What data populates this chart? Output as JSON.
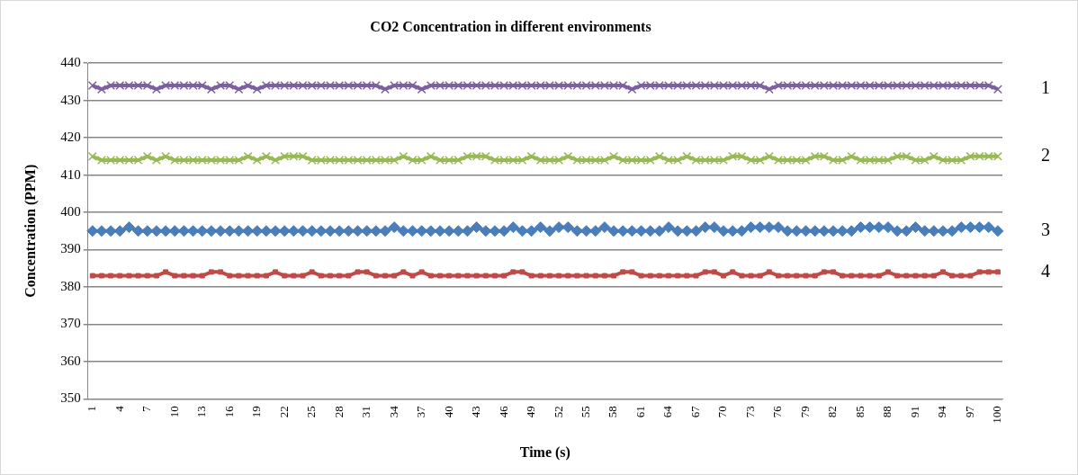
{
  "chart_data": {
    "type": "line",
    "title": "CO2 Concentration in different environments",
    "xlabel": "Time (s)",
    "ylabel": "Concentration (PPM)",
    "categories": [
      "1",
      null,
      null,
      "4",
      null,
      null,
      "7",
      null,
      null,
      "10",
      null,
      null,
      "13",
      null,
      null,
      "16",
      null,
      null,
      "19",
      null,
      null,
      "22",
      null,
      null,
      "25",
      null,
      null,
      "28",
      null,
      null,
      "31",
      null,
      null,
      "34",
      null,
      null,
      "37",
      null,
      null,
      "40",
      null,
      null,
      "43",
      null,
      null,
      "46",
      null,
      null,
      "49",
      null,
      null,
      "52",
      null,
      null,
      "55",
      null,
      null,
      "58",
      null,
      null,
      "61",
      null,
      null,
      "64",
      null,
      null,
      "67",
      null,
      null,
      "70",
      null,
      null,
      "73",
      null,
      null,
      "76",
      null,
      null,
      "79",
      null,
      null,
      "82",
      null,
      null,
      "85",
      null,
      null,
      "88",
      null,
      null,
      "91",
      null,
      null,
      "94",
      null,
      null,
      "97",
      null,
      null,
      "100"
    ],
    "series": [
      {
        "name": "1",
        "color": "#7d60a0",
        "marker": "cross",
        "values": [
          434,
          433,
          434,
          434,
          434,
          434,
          434,
          433,
          434,
          434,
          434,
          434,
          434,
          433,
          434,
          434,
          433,
          434,
          433,
          434,
          434,
          434,
          434,
          434,
          434,
          434,
          434,
          434,
          434,
          434,
          434,
          434,
          433,
          434,
          434,
          434,
          433,
          434,
          434,
          434,
          434,
          434,
          434,
          434,
          434,
          434,
          434,
          434,
          434,
          434,
          434,
          434,
          434,
          434,
          434,
          434,
          434,
          434,
          434,
          433,
          434,
          434,
          434,
          434,
          434,
          434,
          434,
          434,
          434,
          434,
          434,
          434,
          434,
          434,
          433,
          434,
          434,
          434,
          434,
          434,
          434,
          434,
          434,
          434,
          434,
          434,
          434,
          434,
          434,
          434,
          434,
          434,
          434,
          434,
          434,
          434,
          434,
          434,
          434,
          433
        ]
      },
      {
        "name": "2",
        "color": "#98b954",
        "marker": "cross",
        "values": [
          415,
          414,
          414,
          414,
          414,
          414,
          415,
          414,
          415,
          414,
          414,
          414,
          414,
          414,
          414,
          414,
          414,
          415,
          414,
          415,
          414,
          415,
          415,
          415,
          414,
          414,
          414,
          414,
          414,
          414,
          414,
          414,
          414,
          414,
          415,
          414,
          414,
          415,
          414,
          414,
          414,
          415,
          415,
          415,
          414,
          414,
          414,
          414,
          415,
          414,
          414,
          414,
          415,
          414,
          414,
          414,
          414,
          415,
          414,
          414,
          414,
          414,
          415,
          414,
          414,
          415,
          414,
          414,
          414,
          414,
          415,
          415,
          414,
          414,
          415,
          414,
          414,
          414,
          414,
          415,
          415,
          414,
          414,
          415,
          414,
          414,
          414,
          414,
          415,
          415,
          414,
          414,
          415,
          414,
          414,
          414,
          415,
          415,
          415,
          415
        ]
      },
      {
        "name": "3",
        "color": "#4a7ebb",
        "marker": "diamond",
        "values": [
          395,
          395,
          395,
          395,
          396,
          395,
          395,
          395,
          395,
          395,
          395,
          395,
          395,
          395,
          395,
          395,
          395,
          395,
          395,
          395,
          395,
          395,
          395,
          395,
          395,
          395,
          395,
          395,
          395,
          395,
          395,
          395,
          395,
          396,
          395,
          395,
          395,
          395,
          395,
          395,
          395,
          395,
          396,
          395,
          395,
          395,
          396,
          395,
          395,
          396,
          395,
          396,
          396,
          395,
          395,
          395,
          396,
          395,
          395,
          395,
          395,
          395,
          395,
          396,
          395,
          395,
          395,
          396,
          396,
          395,
          395,
          395,
          396,
          396,
          396,
          396,
          395,
          395,
          395,
          395,
          395,
          395,
          395,
          395,
          396,
          396,
          396,
          396,
          395,
          395,
          396,
          395,
          395,
          395,
          395,
          396,
          396,
          396,
          396,
          395
        ]
      },
      {
        "name": "4",
        "color": "#be4b48",
        "marker": "square",
        "values": [
          383,
          383,
          383,
          383,
          383,
          383,
          383,
          383,
          384,
          383,
          383,
          383,
          383,
          384,
          384,
          383,
          383,
          383,
          383,
          383,
          384,
          383,
          383,
          383,
          384,
          383,
          383,
          383,
          383,
          384,
          384,
          383,
          383,
          383,
          384,
          383,
          384,
          383,
          383,
          383,
          383,
          383,
          383,
          383,
          383,
          383,
          384,
          384,
          383,
          383,
          383,
          383,
          383,
          383,
          383,
          383,
          383,
          383,
          384,
          384,
          383,
          383,
          383,
          383,
          383,
          383,
          383,
          384,
          384,
          383,
          384,
          383,
          383,
          383,
          384,
          383,
          383,
          383,
          383,
          383,
          384,
          384,
          383,
          383,
          383,
          383,
          383,
          384,
          383,
          383,
          383,
          383,
          383,
          384,
          383,
          383,
          383,
          384,
          384,
          384
        ]
      }
    ],
    "ylim": [
      350,
      440
    ],
    "yticks": [
      350,
      360,
      370,
      380,
      390,
      400,
      410,
      420,
      430,
      440
    ],
    "grid": "y",
    "legend": false
  }
}
